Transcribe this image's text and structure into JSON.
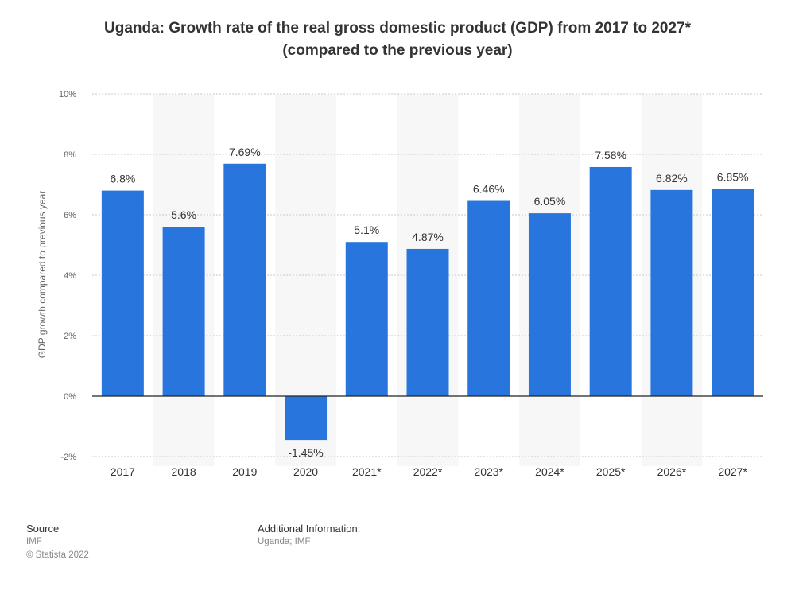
{
  "title_line1": "Uganda: Growth rate of the real gross domestic product (GDP) from 2017 to 2027*",
  "title_line2": "(compared to the previous year)",
  "chart_data": {
    "type": "bar",
    "categories": [
      "2017",
      "2018",
      "2019",
      "2020",
      "2021*",
      "2022*",
      "2023*",
      "2024*",
      "2025*",
      "2026*",
      "2027*"
    ],
    "values": [
      6.8,
      5.6,
      7.69,
      -1.45,
      5.1,
      4.87,
      6.46,
      6.05,
      7.58,
      6.82,
      6.85
    ],
    "data_labels": [
      "6.8%",
      "5.6%",
      "7.69%",
      "-1.45%",
      "5.1%",
      "4.87%",
      "6.46%",
      "6.05%",
      "7.58%",
      "6.82%",
      "6.85%"
    ],
    "ylabel": "GDP growth compared to previous year",
    "xlabel": "",
    "ylim": [
      -2,
      10
    ],
    "yticks": [
      -2,
      0,
      2,
      4,
      6,
      8,
      10
    ],
    "ytick_labels": [
      "-2%",
      "0%",
      "2%",
      "4%",
      "6%",
      "8%",
      "10%"
    ],
    "bar_color": "#2876dd",
    "grid": true
  },
  "footer": {
    "source_heading": "Source",
    "source_value": "IMF",
    "copyright": "© Statista 2022",
    "additional_heading": "Additional Information:",
    "additional_value": "Uganda; IMF"
  }
}
